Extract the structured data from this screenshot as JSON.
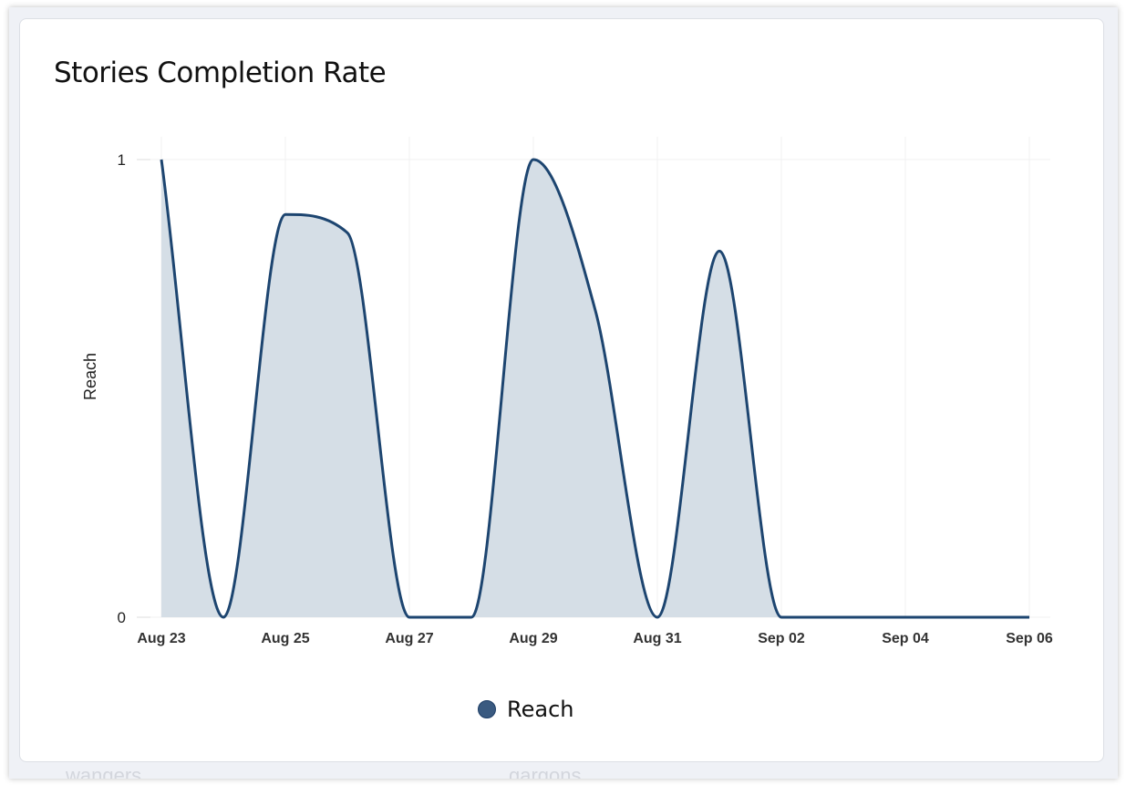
{
  "page": {
    "below_labels": [
      "wangers",
      "gargons"
    ]
  },
  "chart_data": {
    "type": "area",
    "title": "Stories Completion Rate",
    "xlabel": "",
    "ylabel": "Reach",
    "x": [
      "Aug 23",
      "Aug 24",
      "Aug 25",
      "Aug 26",
      "Aug 27",
      "Aug 28",
      "Aug 29",
      "Aug 30",
      "Aug 31",
      "Sep 01",
      "Sep 02",
      "Sep 03",
      "Sep 04",
      "Sep 05",
      "Sep 06"
    ],
    "xticks": [
      "Aug 23",
      "Aug 25",
      "Aug 27",
      "Aug 29",
      "Aug 31",
      "Sep 02",
      "Sep 04",
      "Sep 06"
    ],
    "yticks": [
      "0",
      "1"
    ],
    "ylim": [
      0,
      1
    ],
    "grid": true,
    "legend": "bottom-center",
    "series": [
      {
        "name": "Reach",
        "values": [
          1,
          0,
          0.88,
          0.84,
          0,
          0,
          1,
          0.67,
          0,
          0.8,
          0,
          0,
          0,
          0,
          0
        ],
        "color": "#1d4570",
        "fill": "#d5dee6"
      }
    ]
  }
}
